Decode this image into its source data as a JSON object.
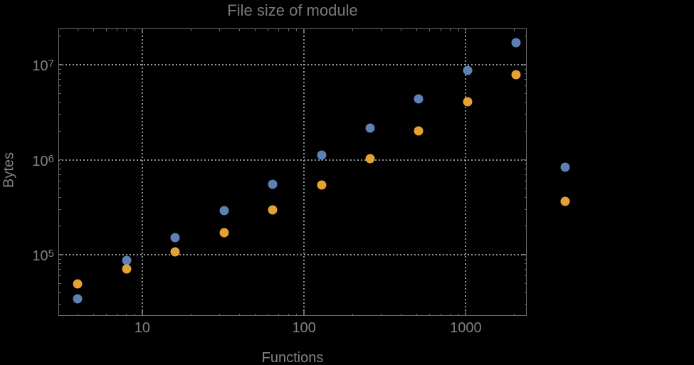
{
  "window": {
    "background": "#000000"
  },
  "chart": {
    "title": "File size of module",
    "colors": {
      "background": "#000000",
      "title": "#7a7a7a",
      "axis_labels": "#848484",
      "tick_labels": "#828282",
      "frame": "#6e6e6e",
      "gridlines": "#949494",
      "series_blue": "#5e81b5",
      "series_orange": "#e3a233"
    }
  },
  "chart_data": {
    "type": "scatter",
    "title": "File size of module",
    "xlabel": "Functions",
    "ylabel": "Bytes",
    "x_scale": "log",
    "y_scale": "log",
    "xlim": [
      3.03,
      2380
    ],
    "ylim": [
      22700,
      24100000
    ],
    "grid": "dotted gridlines at powers of 10",
    "legend": "none",
    "note_points_outside_frame": "x=4096 points are drawn to the right of the plot frame",
    "x": [
      4,
      8,
      16,
      32,
      64,
      128,
      256,
      512,
      1024,
      2048,
      4096
    ],
    "series": [
      {
        "name": "blue",
        "color": "#5e81b5",
        "values": [
          34500,
          86500,
          152000,
          289000,
          553000,
          1110000,
          2140000,
          4350000,
          8670000,
          17000000,
          836000
        ]
      },
      {
        "name": "orange",
        "color": "#e3a233",
        "values": [
          49100,
          70600,
          107000,
          172000,
          299000,
          538000,
          1030000,
          2020000,
          4060000,
          7810000,
          365000
        ]
      }
    ],
    "x_ticks": [
      {
        "value": 10,
        "label": "10"
      },
      {
        "value": 100,
        "label": "100"
      },
      {
        "value": 1000,
        "label": "1000"
      }
    ],
    "y_ticks": [
      {
        "value": 100000,
        "mantissa": "10",
        "exponent": "5"
      },
      {
        "value": 1000000,
        "mantissa": "10",
        "exponent": "6"
      },
      {
        "value": 10000000,
        "mantissa": "10",
        "exponent": "7"
      }
    ]
  }
}
